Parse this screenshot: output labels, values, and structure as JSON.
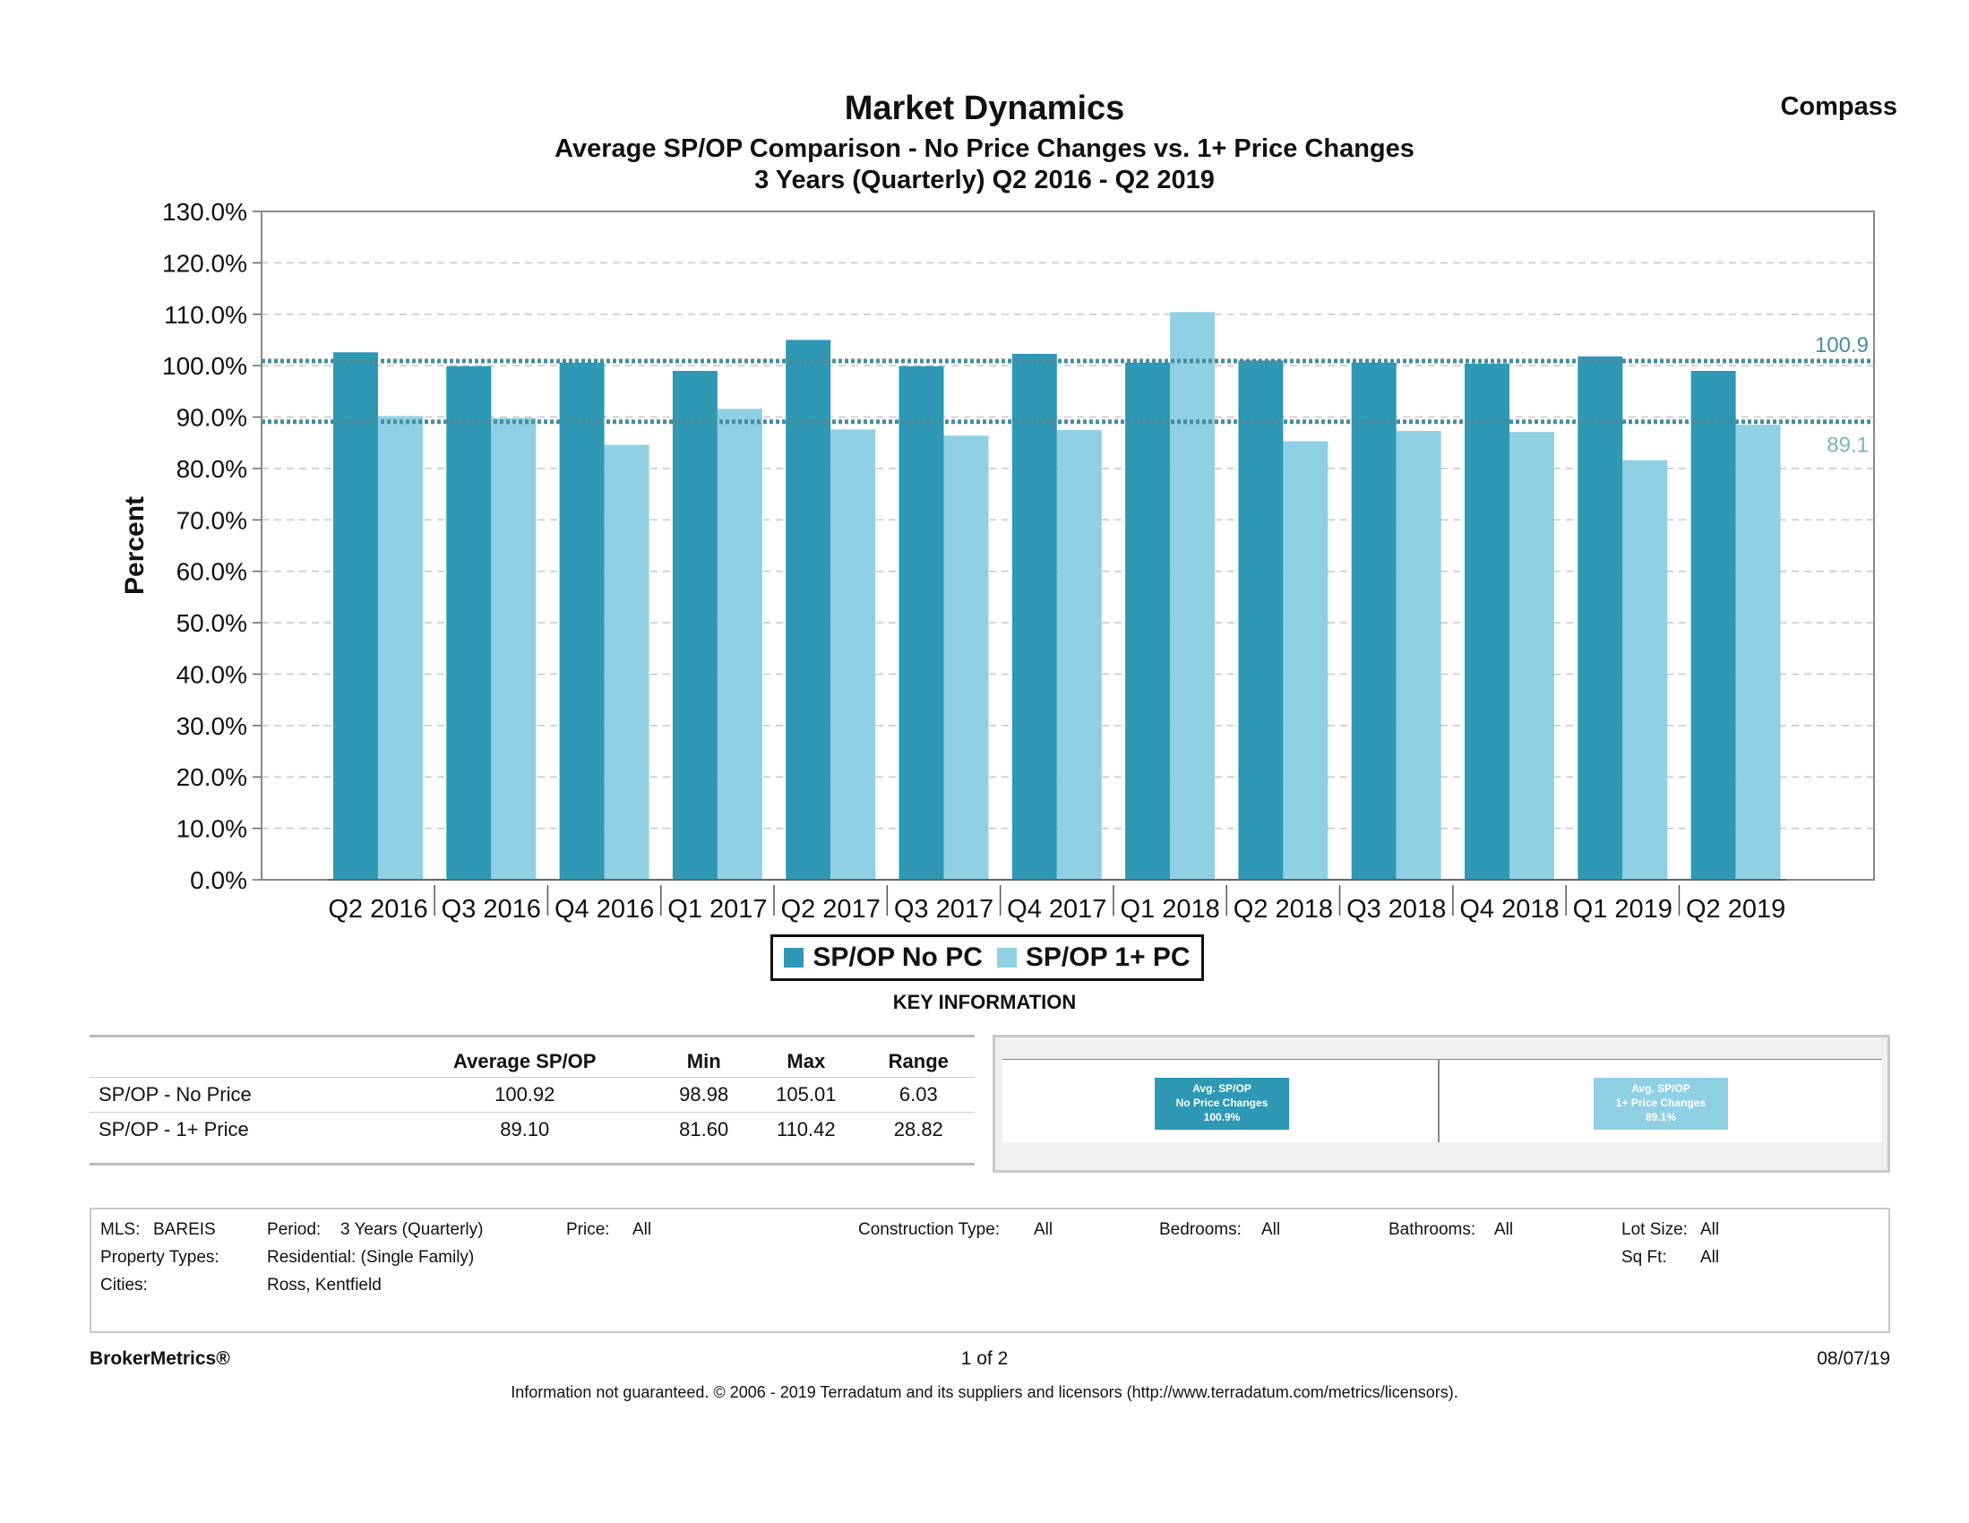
{
  "header": {
    "title": "Market Dynamics",
    "subtitle": "Average SP/OP Comparison - No Price Changes vs. 1+ Price Changes",
    "period": "3 Years (Quarterly) Q2 2016 - Q2 2019",
    "brand": "Compass"
  },
  "colors": {
    "no_pc": "#2e98b5",
    "one_pc": "#8fd1e3",
    "avg_line": "#4a8c9c",
    "grid": "#c8c8c8"
  },
  "chart_data": {
    "type": "bar",
    "ylabel": "Percent",
    "ylim": [
      0,
      130
    ],
    "yticks": [
      "0.0%",
      "10.0%",
      "20.0%",
      "30.0%",
      "40.0%",
      "50.0%",
      "60.0%",
      "70.0%",
      "80.0%",
      "90.0%",
      "100.0%",
      "110.0%",
      "120.0%",
      "130.0%"
    ],
    "categories": [
      "Q2 2016",
      "Q3 2016",
      "Q4 2016",
      "Q1 2017",
      "Q2 2017",
      "Q3 2017",
      "Q4 2017",
      "Q1 2018",
      "Q2 2018",
      "Q3 2018",
      "Q4 2018",
      "Q1 2019",
      "Q2 2019"
    ],
    "series": [
      {
        "name": "SP/OP No PC",
        "values": [
          102.6,
          99.9,
          100.6,
          98.98,
          105.01,
          99.9,
          102.3,
          100.6,
          101.0,
          100.6,
          100.4,
          101.8,
          98.98
        ]
      },
      {
        "name": "SP/OP 1+ PC",
        "values": [
          90.2,
          89.8,
          84.6,
          91.6,
          87.6,
          86.4,
          87.5,
          110.42,
          85.3,
          87.3,
          87.1,
          81.6,
          88.5
        ]
      }
    ],
    "reference_lines": [
      {
        "value": 100.9,
        "label": "100.9"
      },
      {
        "value": 89.1,
        "label": "89.1"
      }
    ],
    "grid": true,
    "legend": "bottom-center"
  },
  "key": {
    "title": "KEY INFORMATION",
    "columns": [
      "",
      "Average SP/OP",
      "Min",
      "Max",
      "Range"
    ],
    "rows": [
      [
        "SP/OP - No Price",
        "100.92",
        "98.98",
        "105.01",
        "6.03"
      ],
      [
        "SP/OP - 1+ Price",
        "89.10",
        "81.60",
        "110.42",
        "28.82"
      ]
    ],
    "kpi_no_pc": {
      "l1": "Avg. SP/OP",
      "l2": "No Price Changes",
      "l3": "100.9%"
    },
    "kpi_one_pc": {
      "l1": "Avg. SP/OP",
      "l2": "1+ Price Changes",
      "l3": "89.1%"
    }
  },
  "criteria": {
    "mls_label": "MLS:",
    "mls": "BAREIS",
    "period_label": "Period:",
    "period": "3 Years (Quarterly)",
    "price_label": "Price:",
    "price": "All",
    "construction_label": "Construction Type:",
    "construction": "All",
    "bedrooms_label": "Bedrooms:",
    "bedrooms": "All",
    "bathrooms_label": "Bathrooms:",
    "bathrooms": "All",
    "lot_label": "Lot Size:",
    "lot": "All",
    "ptype_label": "Property Types:",
    "ptype": "Residential: (Single Family)",
    "sqft_label": "Sq Ft:",
    "sqft": "All",
    "cities_label": "Cities:",
    "cities": "Ross, Kentfield"
  },
  "footer": {
    "brand": "BrokerMetrics®",
    "page": "1 of 2",
    "date": "08/07/19",
    "disclaimer": "Information not guaranteed.  © 2006 - 2019 Terradatum and its suppliers and licensors (http://www.terradatum.com/metrics/licensors)."
  }
}
